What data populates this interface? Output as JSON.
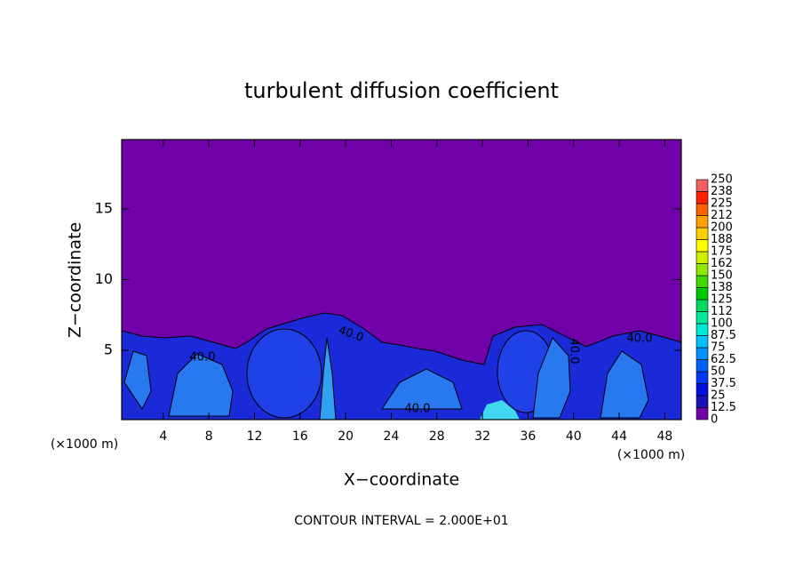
{
  "chart_data": {
    "type": "contour",
    "title": "turbulent diffusion coefficient",
    "x_label": "X−coordinate",
    "y_label": "Z−coordinate",
    "x_unit_label": "(×1000 m)",
    "note": "CONTOUR INTERVAL = 2.000E+01",
    "contour_labels": [
      "40.0",
      "40.0",
      "40.0",
      "40.0",
      "40.0"
    ],
    "xlim": [
      0.35,
      49.45
    ],
    "xticks": [
      4,
      8,
      12,
      16,
      20,
      24,
      28,
      32,
      36,
      40,
      44,
      48
    ],
    "ylim": [
      0.1,
      19.9
    ],
    "yticks": [
      5,
      10,
      15
    ],
    "colorbar": {
      "levels": [
        0,
        12.5,
        25,
        37.5,
        50,
        62.5,
        75,
        87.5,
        100,
        {
          "value": 112.5,
          "label": "112"
        },
        125,
        {
          "value": 137.5,
          "label": "138"
        },
        150,
        {
          "value": 162.5,
          "label": "162"
        },
        175,
        {
          "value": 187.5,
          "label": "188"
        },
        200,
        {
          "value": 212.5,
          "label": "212"
        },
        225,
        {
          "value": 237.5,
          "label": "238"
        },
        250
      ],
      "colors": [
        "#7000a8",
        "#1c10b8",
        "#0010e0",
        "#0038ff",
        "#0060ff",
        "#0090ff",
        "#00c0ff",
        "#00e8d8",
        "#00e898",
        "#00d860",
        "#00c800",
        "#40d800",
        "#90e800",
        "#d0f000",
        "#ffff00",
        "#ffd000",
        "#ffa000",
        "#ff6000",
        "#ff2000",
        "#f06060"
      ]
    }
  }
}
